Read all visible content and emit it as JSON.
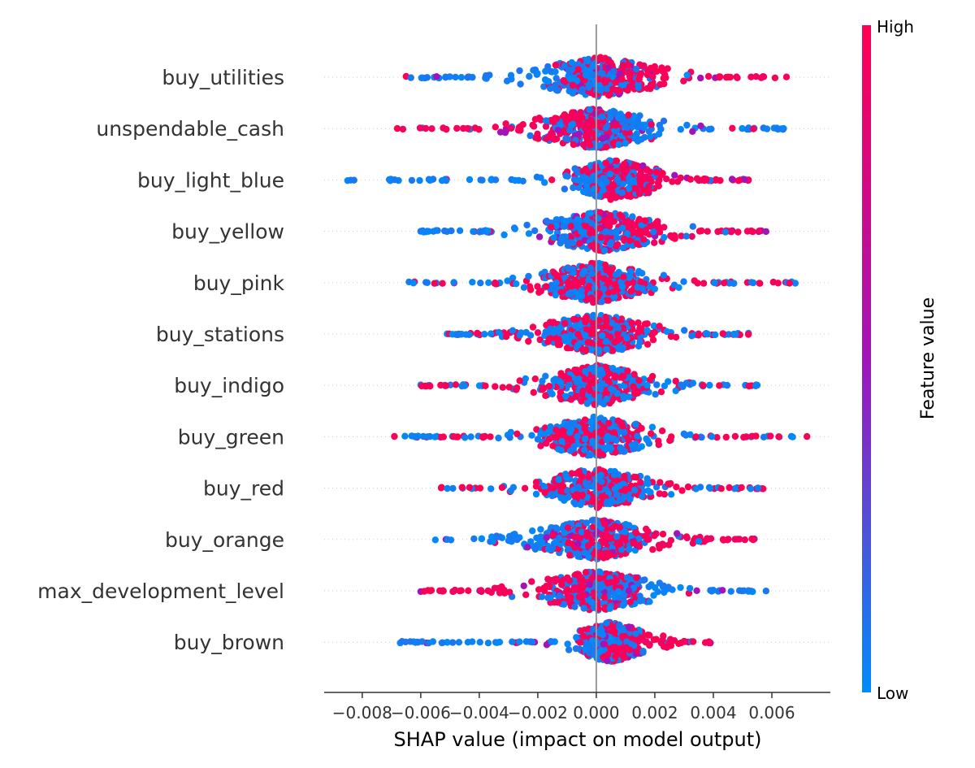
{
  "chart_data": {
    "type": "scatter",
    "subtype": "shap-beeswarm",
    "xlabel": "SHAP value (impact on model output)",
    "xlim": [
      -0.0093,
      0.008
    ],
    "xticks": [
      -0.008,
      -0.006,
      -0.004,
      -0.002,
      0.0,
      0.002,
      0.004,
      0.006
    ],
    "xtick_labels": [
      "−0.008",
      "−0.006",
      "−0.004",
      "−0.002",
      "0.000",
      "0.002",
      "0.004",
      "0.006"
    ],
    "zero_line": 0.0,
    "colorbar": {
      "title": "Feature value",
      "high_label": "High",
      "low_label": "Low",
      "high_color": "#ff0052",
      "mid_color": "#a114b8",
      "low_color": "#008bfb"
    },
    "features": [
      {
        "name": "buy_utilities",
        "min": -0.0065,
        "max": 0.0065,
        "center": 0.0001,
        "core_width": 0.0036,
        "high_side": 1,
        "spread": 0.6
      },
      {
        "name": "unspendable_cash",
        "min": -0.0068,
        "max": 0.0064,
        "center": 0.0,
        "core_width": 0.0035,
        "high_side": -1,
        "spread": 0.6
      },
      {
        "name": "buy_light_blue",
        "min": -0.0085,
        "max": 0.0052,
        "center": 0.0006,
        "core_width": 0.0028,
        "high_side": 1,
        "spread": 0.65
      },
      {
        "name": "buy_yellow",
        "min": -0.006,
        "max": 0.0058,
        "center": 0.0002,
        "core_width": 0.0035,
        "high_side": 1,
        "spread": 0.6
      },
      {
        "name": "buy_pink",
        "min": -0.0064,
        "max": 0.0068,
        "center": 0.0,
        "core_width": 0.0032,
        "high_side": 0,
        "spread": 0.5
      },
      {
        "name": "buy_stations",
        "min": -0.0051,
        "max": 0.0052,
        "center": 0.0,
        "core_width": 0.0032,
        "high_side": 0,
        "spread": 0.5
      },
      {
        "name": "buy_indigo",
        "min": -0.006,
        "max": 0.0055,
        "center": 0.0,
        "core_width": 0.0032,
        "high_side": 0,
        "spread": 0.5
      },
      {
        "name": "buy_green",
        "min": -0.0069,
        "max": 0.0072,
        "center": 0.0,
        "core_width": 0.0032,
        "high_side": 0,
        "spread": 0.5
      },
      {
        "name": "buy_red",
        "min": -0.0053,
        "max": 0.0057,
        "center": 0.0,
        "core_width": 0.0032,
        "high_side": 0,
        "spread": 0.5
      },
      {
        "name": "buy_orange",
        "min": -0.0055,
        "max": 0.0054,
        "center": 0.0,
        "core_width": 0.0035,
        "high_side": 1,
        "spread": 0.6
      },
      {
        "name": "max_development_level",
        "min": -0.006,
        "max": 0.0058,
        "center": 0.0,
        "core_width": 0.0035,
        "high_side": -1,
        "spread": 0.6
      },
      {
        "name": "buy_brown",
        "min": -0.0067,
        "max": 0.0039,
        "center": 0.0005,
        "core_width": 0.0022,
        "high_side": 1,
        "spread": 0.65
      }
    ]
  }
}
